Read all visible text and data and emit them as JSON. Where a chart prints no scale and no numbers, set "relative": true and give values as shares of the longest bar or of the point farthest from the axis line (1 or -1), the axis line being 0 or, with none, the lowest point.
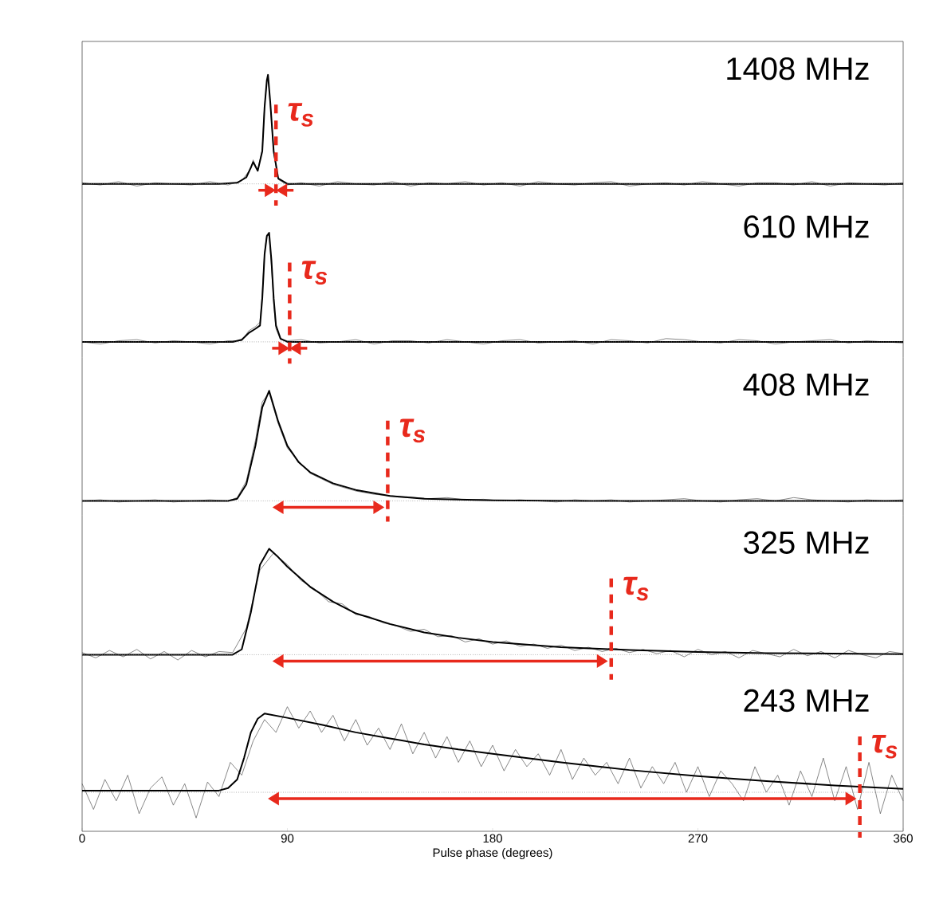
{
  "chart_data": [
    {
      "type": "line",
      "relative": true,
      "title": "1408 MHz",
      "xlim": [
        0,
        360
      ],
      "tick_labels": false,
      "series": [
        {
          "color": "#555555",
          "x": [
            0,
            8,
            16,
            24,
            32,
            40,
            48,
            56,
            64,
            70,
            74,
            75,
            77,
            79,
            80,
            81,
            81.5,
            82.5,
            84,
            86,
            90,
            96,
            104,
            112,
            120,
            128,
            136,
            144,
            152,
            160,
            168,
            176,
            184,
            192,
            200,
            208,
            216,
            224,
            232,
            240,
            248,
            256,
            264,
            272,
            280,
            288,
            296,
            304,
            312,
            320,
            328,
            336,
            344,
            352,
            360
          ],
          "values": [
            0.01,
            -0.01,
            0.02,
            -0.02,
            0.01,
            0,
            -0.01,
            0.02,
            -0.01,
            0.03,
            0.14,
            0.22,
            0.12,
            0.32,
            0.72,
            0.93,
            0.99,
            0.73,
            0.28,
            0.04,
            -0.01,
            0.01,
            -0.02,
            0.02,
            0,
            -0.01,
            0.02,
            -0.02,
            0.01,
            0,
            0.02,
            -0.01,
            0.01,
            -0.02,
            0.02,
            0,
            -0.01,
            0.01,
            0.02,
            -0.02,
            0,
            0.01,
            -0.01,
            0.02,
            0,
            -0.02,
            0.01,
            0.01,
            -0.01,
            0.02,
            -0.02,
            0.01,
            0,
            -0.01,
            0.01
          ]
        },
        {
          "color": "#000000",
          "x": [
            0,
            60,
            68,
            72,
            74,
            75,
            77,
            79,
            80,
            81,
            81.5,
            82.5,
            84,
            86,
            90,
            360
          ],
          "values": [
            0,
            0,
            0.01,
            0.06,
            0.15,
            0.2,
            0.12,
            0.3,
            0.7,
            0.95,
            1.0,
            0.75,
            0.3,
            0.05,
            0,
            0
          ]
        }
      ],
      "ref_lines": [
        {
          "axis": "y",
          "value": 0,
          "color": "#888888",
          "line_style": "dotted"
        },
        {
          "axis": "x",
          "value": 85,
          "label": "τ$_{s}$",
          "color": "#e8291c",
          "line_style": "dashed"
        }
      ]
    },
    {
      "type": "line",
      "relative": true,
      "title": "610 MHz",
      "xlim": [
        0,
        360
      ],
      "tick_labels": false,
      "series": [
        {
          "color": "#555555",
          "x": [
            0,
            8,
            16,
            24,
            32,
            40,
            48,
            56,
            64,
            70,
            73,
            76,
            78,
            79,
            80,
            81,
            82,
            83,
            84,
            85,
            87,
            90,
            96,
            104,
            112,
            120,
            128,
            136,
            144,
            152,
            160,
            168,
            176,
            184,
            192,
            200,
            208,
            216,
            224,
            232,
            240,
            248,
            256,
            264,
            272,
            280,
            288,
            296,
            304,
            312,
            320,
            328,
            336,
            344,
            352,
            360
          ],
          "values": [
            0,
            -0.02,
            0.01,
            0.02,
            -0.01,
            0.01,
            0,
            -0.02,
            0.01,
            0.01,
            0.1,
            0.14,
            0.18,
            0.45,
            0.82,
            0.98,
            0.97,
            0.7,
            0.35,
            0.12,
            0.02,
            0.01,
            0.02,
            -0.01,
            0,
            0.02,
            -0.02,
            0.01,
            0.01,
            -0.01,
            0.02,
            0,
            -0.02,
            0.01,
            0.02,
            -0.01,
            0,
            0.01,
            -0.02,
            0.02,
            0.01,
            -0.01,
            0.03,
            0.02,
            0,
            -0.01,
            0.02,
            0.01,
            -0.02,
            0,
            0.01,
            0.02,
            -0.01,
            0.01,
            0,
            -0.01
          ]
        },
        {
          "color": "#000000",
          "x": [
            0,
            66,
            70,
            73,
            76,
            78,
            79,
            80,
            81,
            82,
            83,
            84,
            85,
            87,
            90,
            360
          ],
          "values": [
            0,
            0,
            0.02,
            0.08,
            0.12,
            0.15,
            0.4,
            0.8,
            0.97,
            1.0,
            0.75,
            0.4,
            0.15,
            0.03,
            0,
            0
          ]
        }
      ],
      "ref_lines": [
        {
          "axis": "y",
          "value": 0,
          "color": "#888888",
          "line_style": "dotted"
        },
        {
          "axis": "x",
          "value": 91,
          "label": "τ$_{s}$",
          "color": "#e8291c",
          "line_style": "dashed"
        }
      ]
    },
    {
      "type": "line",
      "relative": true,
      "title": "408 MHz",
      "xlim": [
        0,
        360
      ],
      "tick_labels": false,
      "series": [
        {
          "color": "#555555",
          "x": [
            0,
            8,
            16,
            24,
            32,
            40,
            48,
            56,
            64,
            68,
            72,
            76,
            79,
            82,
            86,
            90,
            95,
            100,
            105,
            110,
            115,
            120,
            128,
            136,
            144,
            152,
            160,
            168,
            176,
            184,
            192,
            200,
            208,
            216,
            224,
            232,
            240,
            248,
            256,
            264,
            272,
            280,
            288,
            296,
            304,
            312,
            320,
            328,
            336,
            344,
            352,
            360
          ],
          "values": [
            0,
            0.01,
            -0.01,
            0,
            0.01,
            -0.01,
            0,
            0.01,
            0,
            0.03,
            0.18,
            0.55,
            0.9,
            0.98,
            0.7,
            0.48,
            0.36,
            0.25,
            0.2,
            0.15,
            0.12,
            0.09,
            0.06,
            0.045,
            0.035,
            0.02,
            0.03,
            0.01,
            0.015,
            0,
            0.01,
            0,
            -0.01,
            0.01,
            0,
            0.01,
            -0.01,
            0,
            0.01,
            0.02,
            0,
            -0.01,
            0.01,
            0.02,
            0,
            0.03,
            0.01,
            0,
            -0.01,
            0.01,
            0,
            0.01
          ]
        },
        {
          "color": "#000000",
          "x": [
            0,
            64,
            68,
            72,
            76,
            79,
            82,
            86,
            90,
            95,
            100,
            110,
            120,
            135,
            150,
            180,
            220,
            360
          ],
          "values": [
            0,
            0,
            0.02,
            0.15,
            0.5,
            0.85,
            1.0,
            0.72,
            0.5,
            0.35,
            0.26,
            0.16,
            0.1,
            0.045,
            0.02,
            0.005,
            0,
            0
          ]
        }
      ],
      "ref_lines": [
        {
          "axis": "y",
          "value": 0,
          "color": "#888888",
          "line_style": "dotted"
        },
        {
          "axis": "x",
          "value": 134,
          "label": "τ$_{s}$",
          "color": "#e8291c",
          "line_style": "dashed"
        }
      ]
    },
    {
      "type": "line",
      "relative": true,
      "title": "325 MHz",
      "xlim": [
        0,
        360
      ],
      "tick_labels": false,
      "series": [
        {
          "color": "#555555",
          "x": [
            0,
            6,
            12,
            18,
            24,
            30,
            36,
            42,
            48,
            54,
            60,
            66,
            72,
            78,
            84,
            90,
            96,
            102,
            108,
            114,
            120,
            126,
            132,
            138,
            144,
            150,
            156,
            162,
            168,
            174,
            180,
            186,
            192,
            198,
            204,
            210,
            216,
            222,
            228,
            234,
            240,
            246,
            252,
            258,
            264,
            270,
            276,
            282,
            288,
            294,
            300,
            306,
            312,
            318,
            324,
            330,
            336,
            342,
            348,
            354,
            360
          ],
          "values": [
            0.02,
            -0.03,
            0.04,
            -0.02,
            0.05,
            -0.04,
            0.03,
            -0.05,
            0.04,
            -0.02,
            0.03,
            0.02,
            0.25,
            0.8,
            0.96,
            0.85,
            0.7,
            0.62,
            0.5,
            0.48,
            0.38,
            0.36,
            0.3,
            0.27,
            0.22,
            0.24,
            0.17,
            0.18,
            0.12,
            0.15,
            0.1,
            0.13,
            0.08,
            0.1,
            0.06,
            0.09,
            0.04,
            0.07,
            0.03,
            0.06,
            0.02,
            0.05,
            0.01,
            0.04,
            -0.02,
            0.05,
            0,
            0.03,
            -0.03,
            0.04,
            0.01,
            -0.02,
            0.05,
            -0.01,
            0.03,
            -0.03,
            0.04,
            0,
            -0.03,
            0.03,
            0.01
          ]
        },
        {
          "color": "#000000",
          "x": [
            0,
            66,
            70,
            74,
            78,
            82,
            86,
            90,
            100,
            110,
            120,
            135,
            150,
            165,
            180,
            210,
            240,
            270,
            300,
            360
          ],
          "values": [
            0,
            0,
            0.05,
            0.4,
            0.85,
            1.0,
            0.92,
            0.83,
            0.64,
            0.5,
            0.39,
            0.29,
            0.21,
            0.16,
            0.12,
            0.07,
            0.045,
            0.025,
            0.015,
            0.005
          ]
        }
      ],
      "ref_lines": [
        {
          "axis": "y",
          "value": 0,
          "color": "#888888",
          "line_style": "dotted"
        },
        {
          "axis": "x",
          "value": 232,
          "label": "τ$_{s}$",
          "color": "#e8291c",
          "line_style": "dashed"
        }
      ]
    },
    {
      "type": "line",
      "relative": true,
      "title": "243 MHz",
      "xlim": [
        0,
        360
      ],
      "xticks": [
        0,
        90,
        180,
        270,
        360
      ],
      "xlabel": "Pulse phase (degrees)",
      "tick_labels": "x",
      "series": [
        {
          "color": "#555555",
          "x": [
            0,
            5,
            10,
            15,
            20,
            25,
            30,
            35,
            40,
            45,
            50,
            55,
            60,
            65,
            70,
            75,
            80,
            85,
            90,
            95,
            100,
            105,
            110,
            115,
            120,
            125,
            130,
            135,
            140,
            145,
            150,
            155,
            160,
            165,
            170,
            175,
            180,
            185,
            190,
            195,
            200,
            205,
            210,
            215,
            220,
            225,
            230,
            235,
            240,
            245,
            250,
            255,
            260,
            265,
            270,
            275,
            280,
            285,
            290,
            295,
            300,
            305,
            310,
            315,
            320,
            325,
            330,
            335,
            340,
            345,
            350,
            355,
            360
          ],
          "values": [
            0.1,
            -0.2,
            0.15,
            -0.1,
            0.2,
            -0.25,
            0.05,
            0.18,
            -0.15,
            0.1,
            -0.3,
            0.12,
            -0.05,
            0.35,
            0.2,
            0.6,
            0.85,
            0.7,
            1.0,
            0.75,
            0.95,
            0.7,
            0.9,
            0.6,
            0.85,
            0.55,
            0.75,
            0.5,
            0.8,
            0.45,
            0.7,
            0.4,
            0.65,
            0.35,
            0.6,
            0.3,
            0.55,
            0.25,
            0.5,
            0.3,
            0.45,
            0.2,
            0.5,
            0.15,
            0.4,
            0.2,
            0.35,
            0.1,
            0.4,
            0.05,
            0.3,
            0.1,
            0.35,
            0,
            0.3,
            -0.05,
            0.25,
            0.1,
            -0.1,
            0.3,
            0,
            0.2,
            -0.15,
            0.25,
            -0.05,
            0.4,
            -0.1,
            0.3,
            -0.2,
            0.35,
            -0.25,
            0.2,
            -0.1
          ]
        },
        {
          "color": "#000000",
          "x": [
            0,
            60,
            64,
            68,
            71,
            74,
            77,
            80,
            90,
            105,
            120,
            135,
            150,
            165,
            180,
            210,
            240,
            270,
            300,
            330,
            360
          ],
          "values": [
            0.02,
            0.02,
            0.05,
            0.15,
            0.4,
            0.7,
            0.86,
            0.92,
            0.87,
            0.79,
            0.7,
            0.63,
            0.56,
            0.5,
            0.45,
            0.35,
            0.26,
            0.19,
            0.13,
            0.08,
            0.04
          ]
        }
      ],
      "ref_lines": [
        {
          "axis": "y",
          "value": 0,
          "color": "#888888",
          "line_style": "dotted"
        },
        {
          "axis": "x",
          "value": 341,
          "label": "τ$_{s}$",
          "color": "#e8291c",
          "line_style": "dashed"
        }
      ]
    }
  ]
}
